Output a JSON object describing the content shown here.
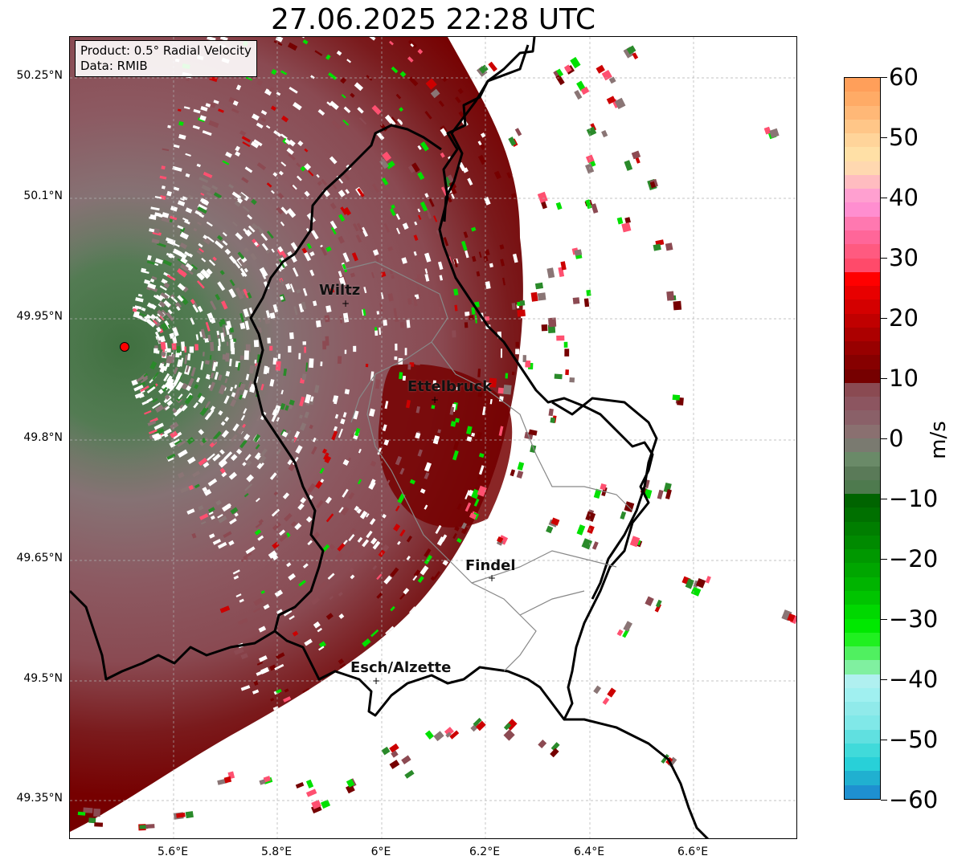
{
  "title": "27.06.2025 22:28 UTC",
  "product_box": {
    "line1": "Product: 0.5° Radial Velocity",
    "line2": "Data: RMIB"
  },
  "axes": {
    "lat_ticks": [
      "50.25°N",
      "50.1°N",
      "49.95°N",
      "49.8°N",
      "49.65°N",
      "49.5°N",
      "49.35°N"
    ],
    "lon_ticks": [
      "5.6°E",
      "5.8°E",
      "6°E",
      "6.2°E",
      "6.4°E",
      "6.6°E"
    ],
    "grid": true,
    "grid_color": "#b0b0b0"
  },
  "cities": [
    {
      "name": "Wiltz"
    },
    {
      "name": "Ettelbruck"
    },
    {
      "name": "Findel"
    },
    {
      "name": "Esch/Alzette"
    }
  ],
  "radar": {
    "color": "#ff0000"
  },
  "colorbar": {
    "unit": "m/s",
    "ticks": [
      "60",
      "50",
      "40",
      "30",
      "20",
      "10",
      "0",
      "−10",
      "−20",
      "−30",
      "−40",
      "−50",
      "−60"
    ],
    "min": -60,
    "max": 60,
    "colors_top_to_bottom": [
      "#ff9f5a",
      "#ffab66",
      "#ffb877",
      "#ffc688",
      "#ffd49a",
      "#ffe0a6",
      "#ffd8b0",
      "#ffbcc0",
      "#ffa0d0",
      "#ff8ed0",
      "#ff78b0",
      "#ff6699",
      "#ff5a80",
      "#ff4a6a",
      "#ff0000",
      "#e80000",
      "#d40000",
      "#c00000",
      "#ac0000",
      "#980000",
      "#860000",
      "#760000",
      "#8a4a52",
      "#8c5560",
      "#8a6068",
      "#8a7070",
      "#7a7a70",
      "#6a8a68",
      "#5a7a58",
      "#4e7a4e",
      "#006400",
      "#007000",
      "#007e00",
      "#008a00",
      "#009800",
      "#00a600",
      "#00b400",
      "#00c400",
      "#00d800",
      "#00e800",
      "#20f020",
      "#50f060",
      "#80f0a0",
      "#b0f0f0",
      "#a0f0f0",
      "#90eaea",
      "#80e8e8",
      "#60e0e0",
      "#40dada",
      "#28d0d8",
      "#20b0d0",
      "#1e90d0"
    ]
  },
  "velocity_palette": {
    "inbound_strong": "#00e000",
    "inbound": "#2a8a2a",
    "near_zero_green": "#5a8a5a",
    "near_zero": "#8a7575",
    "outbound": "#8c4a52",
    "outbound_strong": "#760000",
    "outbound_very_strong": "#cc0000",
    "outbound_extreme": "#ff5070"
  }
}
